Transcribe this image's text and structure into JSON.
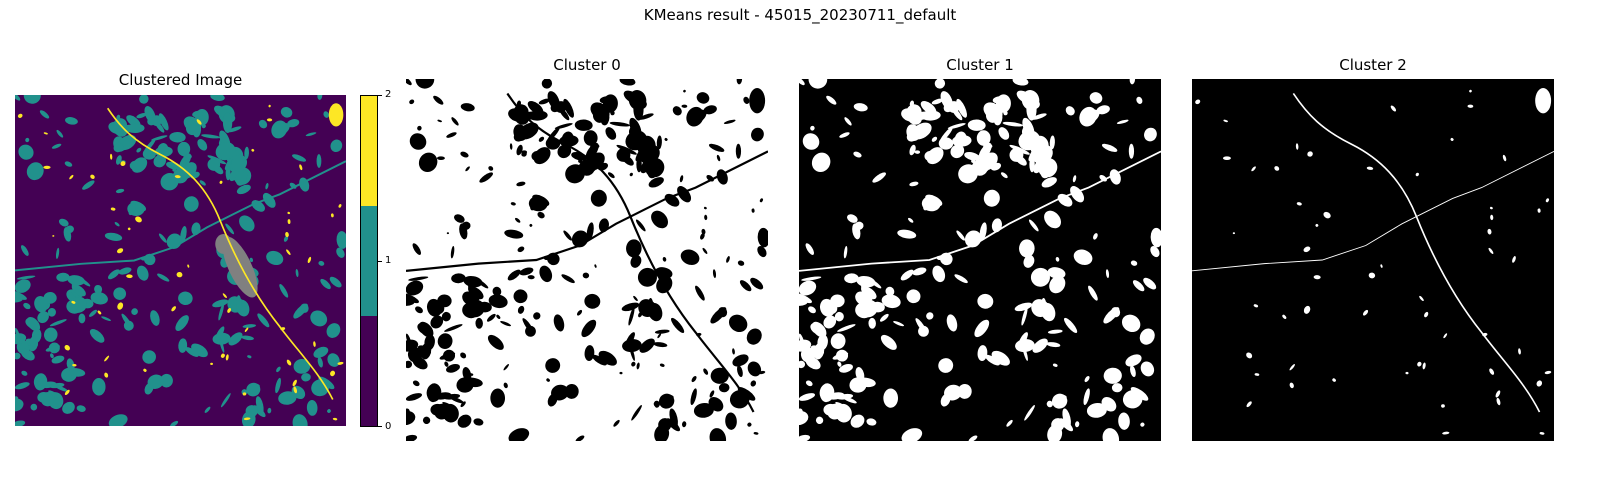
{
  "suptitle": "KMeans result - 45015_20230711_default",
  "chart_data": [
    {
      "type": "heatmap",
      "title": "Clustered Image",
      "classes": [
        0,
        1,
        2
      ],
      "mask_color": "#808080",
      "colorbar": {
        "ticks": [
          "0",
          "1",
          "2"
        ],
        "colors": [
          "#440154",
          "#21918c",
          "#fde725"
        ],
        "range": [
          0,
          2
        ]
      }
    },
    {
      "type": "heatmap",
      "title": "Cluster 0",
      "cluster": 0,
      "colors": [
        "#000000",
        "#ffffff"
      ]
    },
    {
      "type": "heatmap",
      "title": "Cluster 1",
      "cluster": 1,
      "colors": [
        "#000000",
        "#ffffff"
      ]
    },
    {
      "type": "heatmap",
      "title": "Cluster 2",
      "cluster": 2,
      "colors": [
        "#000000",
        "#ffffff"
      ]
    }
  ]
}
